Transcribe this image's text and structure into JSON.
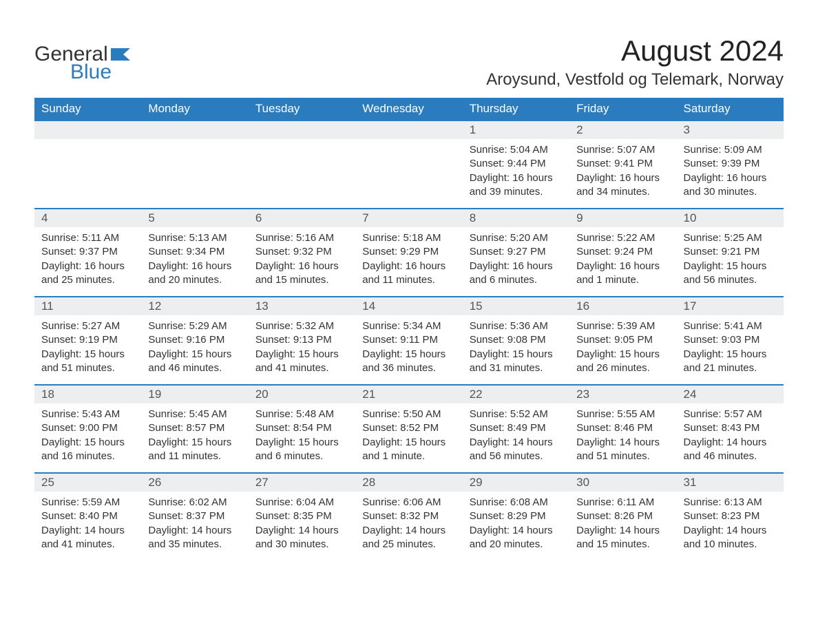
{
  "logo": {
    "word1": "General",
    "word2": "Blue",
    "word1_color": "#333333",
    "word2_color": "#2b7bbf",
    "icon_color": "#2b7bbf"
  },
  "title": {
    "month_year": "August 2024",
    "location": "Aroysund, Vestfold og Telemark, Norway"
  },
  "colors": {
    "header_bg": "#2b7bbf",
    "header_text": "#ffffff",
    "daynum_bg": "#eceeef",
    "daynum_text": "#555555",
    "cell_border": "#2b7bbf",
    "body_text": "#333333",
    "page_bg": "#ffffff"
  },
  "calendar": {
    "type": "table",
    "columns": [
      "Sunday",
      "Monday",
      "Tuesday",
      "Wednesday",
      "Thursday",
      "Friday",
      "Saturday"
    ],
    "weeks": [
      [
        null,
        null,
        null,
        null,
        {
          "day": "1",
          "sunrise": "Sunrise: 5:04 AM",
          "sunset": "Sunset: 9:44 PM",
          "daylight": "Daylight: 16 hours and 39 minutes."
        },
        {
          "day": "2",
          "sunrise": "Sunrise: 5:07 AM",
          "sunset": "Sunset: 9:41 PM",
          "daylight": "Daylight: 16 hours and 34 minutes."
        },
        {
          "day": "3",
          "sunrise": "Sunrise: 5:09 AM",
          "sunset": "Sunset: 9:39 PM",
          "daylight": "Daylight: 16 hours and 30 minutes."
        }
      ],
      [
        {
          "day": "4",
          "sunrise": "Sunrise: 5:11 AM",
          "sunset": "Sunset: 9:37 PM",
          "daylight": "Daylight: 16 hours and 25 minutes."
        },
        {
          "day": "5",
          "sunrise": "Sunrise: 5:13 AM",
          "sunset": "Sunset: 9:34 PM",
          "daylight": "Daylight: 16 hours and 20 minutes."
        },
        {
          "day": "6",
          "sunrise": "Sunrise: 5:16 AM",
          "sunset": "Sunset: 9:32 PM",
          "daylight": "Daylight: 16 hours and 15 minutes."
        },
        {
          "day": "7",
          "sunrise": "Sunrise: 5:18 AM",
          "sunset": "Sunset: 9:29 PM",
          "daylight": "Daylight: 16 hours and 11 minutes."
        },
        {
          "day": "8",
          "sunrise": "Sunrise: 5:20 AM",
          "sunset": "Sunset: 9:27 PM",
          "daylight": "Daylight: 16 hours and 6 minutes."
        },
        {
          "day": "9",
          "sunrise": "Sunrise: 5:22 AM",
          "sunset": "Sunset: 9:24 PM",
          "daylight": "Daylight: 16 hours and 1 minute."
        },
        {
          "day": "10",
          "sunrise": "Sunrise: 5:25 AM",
          "sunset": "Sunset: 9:21 PM",
          "daylight": "Daylight: 15 hours and 56 minutes."
        }
      ],
      [
        {
          "day": "11",
          "sunrise": "Sunrise: 5:27 AM",
          "sunset": "Sunset: 9:19 PM",
          "daylight": "Daylight: 15 hours and 51 minutes."
        },
        {
          "day": "12",
          "sunrise": "Sunrise: 5:29 AM",
          "sunset": "Sunset: 9:16 PM",
          "daylight": "Daylight: 15 hours and 46 minutes."
        },
        {
          "day": "13",
          "sunrise": "Sunrise: 5:32 AM",
          "sunset": "Sunset: 9:13 PM",
          "daylight": "Daylight: 15 hours and 41 minutes."
        },
        {
          "day": "14",
          "sunrise": "Sunrise: 5:34 AM",
          "sunset": "Sunset: 9:11 PM",
          "daylight": "Daylight: 15 hours and 36 minutes."
        },
        {
          "day": "15",
          "sunrise": "Sunrise: 5:36 AM",
          "sunset": "Sunset: 9:08 PM",
          "daylight": "Daylight: 15 hours and 31 minutes."
        },
        {
          "day": "16",
          "sunrise": "Sunrise: 5:39 AM",
          "sunset": "Sunset: 9:05 PM",
          "daylight": "Daylight: 15 hours and 26 minutes."
        },
        {
          "day": "17",
          "sunrise": "Sunrise: 5:41 AM",
          "sunset": "Sunset: 9:03 PM",
          "daylight": "Daylight: 15 hours and 21 minutes."
        }
      ],
      [
        {
          "day": "18",
          "sunrise": "Sunrise: 5:43 AM",
          "sunset": "Sunset: 9:00 PM",
          "daylight": "Daylight: 15 hours and 16 minutes."
        },
        {
          "day": "19",
          "sunrise": "Sunrise: 5:45 AM",
          "sunset": "Sunset: 8:57 PM",
          "daylight": "Daylight: 15 hours and 11 minutes."
        },
        {
          "day": "20",
          "sunrise": "Sunrise: 5:48 AM",
          "sunset": "Sunset: 8:54 PM",
          "daylight": "Daylight: 15 hours and 6 minutes."
        },
        {
          "day": "21",
          "sunrise": "Sunrise: 5:50 AM",
          "sunset": "Sunset: 8:52 PM",
          "daylight": "Daylight: 15 hours and 1 minute."
        },
        {
          "day": "22",
          "sunrise": "Sunrise: 5:52 AM",
          "sunset": "Sunset: 8:49 PM",
          "daylight": "Daylight: 14 hours and 56 minutes."
        },
        {
          "day": "23",
          "sunrise": "Sunrise: 5:55 AM",
          "sunset": "Sunset: 8:46 PM",
          "daylight": "Daylight: 14 hours and 51 minutes."
        },
        {
          "day": "24",
          "sunrise": "Sunrise: 5:57 AM",
          "sunset": "Sunset: 8:43 PM",
          "daylight": "Daylight: 14 hours and 46 minutes."
        }
      ],
      [
        {
          "day": "25",
          "sunrise": "Sunrise: 5:59 AM",
          "sunset": "Sunset: 8:40 PM",
          "daylight": "Daylight: 14 hours and 41 minutes."
        },
        {
          "day": "26",
          "sunrise": "Sunrise: 6:02 AM",
          "sunset": "Sunset: 8:37 PM",
          "daylight": "Daylight: 14 hours and 35 minutes."
        },
        {
          "day": "27",
          "sunrise": "Sunrise: 6:04 AM",
          "sunset": "Sunset: 8:35 PM",
          "daylight": "Daylight: 14 hours and 30 minutes."
        },
        {
          "day": "28",
          "sunrise": "Sunrise: 6:06 AM",
          "sunset": "Sunset: 8:32 PM",
          "daylight": "Daylight: 14 hours and 25 minutes."
        },
        {
          "day": "29",
          "sunrise": "Sunrise: 6:08 AM",
          "sunset": "Sunset: 8:29 PM",
          "daylight": "Daylight: 14 hours and 20 minutes."
        },
        {
          "day": "30",
          "sunrise": "Sunrise: 6:11 AM",
          "sunset": "Sunset: 8:26 PM",
          "daylight": "Daylight: 14 hours and 15 minutes."
        },
        {
          "day": "31",
          "sunrise": "Sunrise: 6:13 AM",
          "sunset": "Sunset: 8:23 PM",
          "daylight": "Daylight: 14 hours and 10 minutes."
        }
      ]
    ]
  }
}
